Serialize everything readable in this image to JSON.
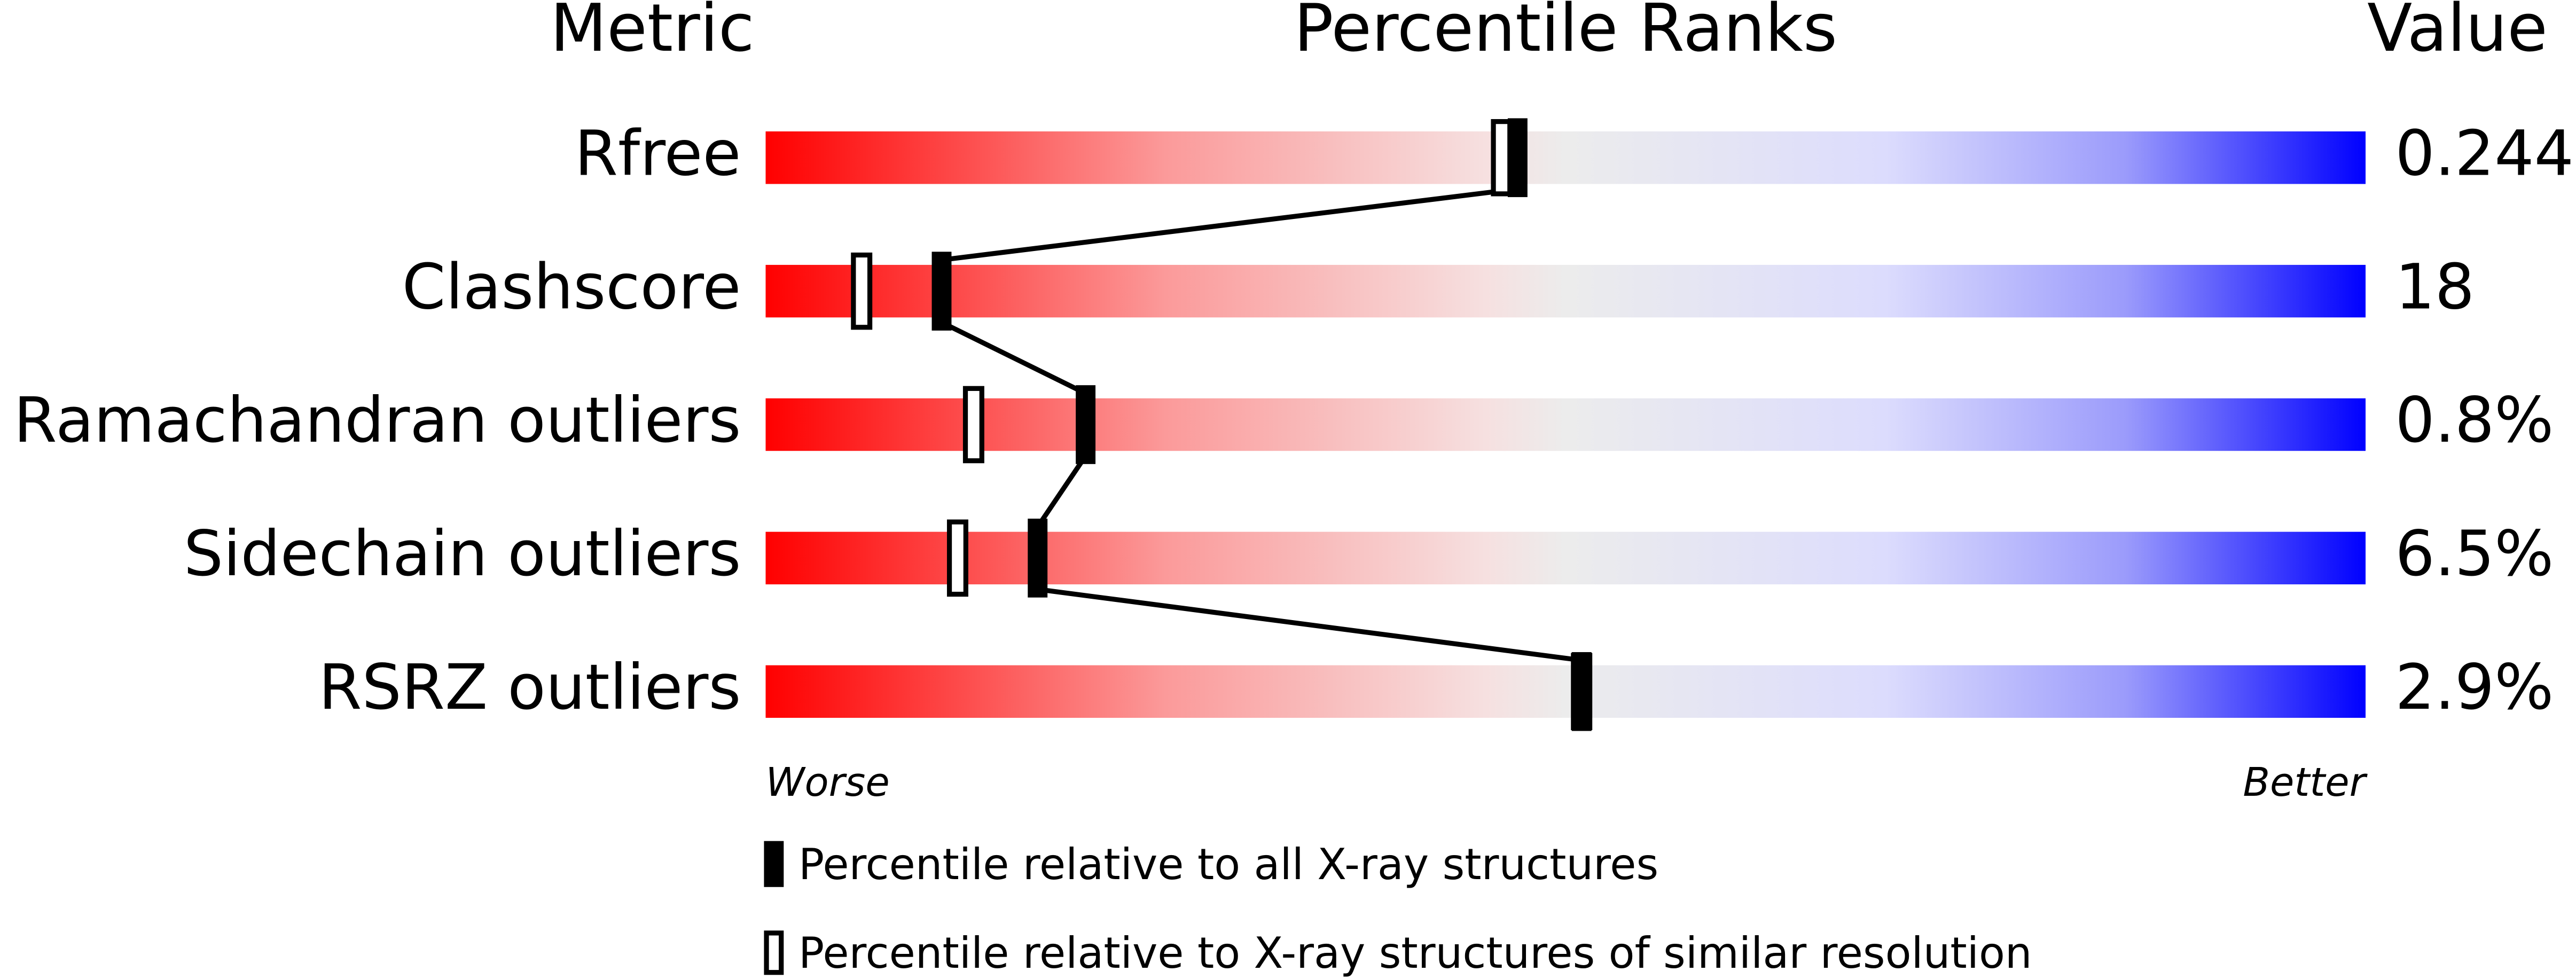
{
  "chart_data": {
    "type": "percentile-slider",
    "headers": {
      "metric": "Metric",
      "ranks": "Percentile Ranks",
      "value": "Value"
    },
    "categories": [
      "Rfree",
      "Clashscore",
      "Ramachandran outliers",
      "Sidechain outliers",
      "RSRZ outliers"
    ],
    "printed_values": [
      "0.244",
      "18",
      "0.8%",
      "6.5%",
      "2.9%"
    ],
    "xlim": [
      0,
      100
    ],
    "axis_labels": {
      "worse": "Worse",
      "better": "Better"
    },
    "series": [
      {
        "name": "Percentile relative to all X-ray structures",
        "style": "filled",
        "color": "#000000",
        "values": [
          47,
          11,
          20,
          17,
          51
        ]
      },
      {
        "name": "Percentile relative to X-ray structures of similar resolution",
        "style": "open",
        "color": "#000000",
        "values": [
          46,
          6,
          13,
          12,
          51
        ]
      }
    ]
  }
}
